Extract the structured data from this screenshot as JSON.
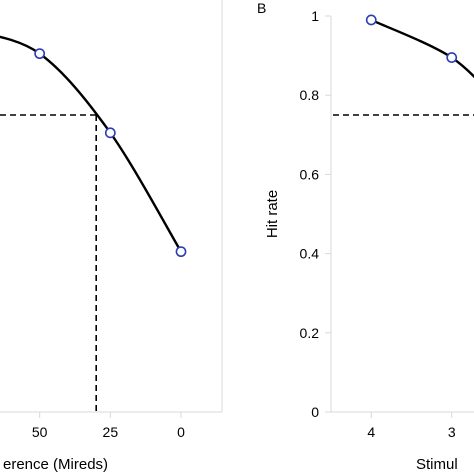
{
  "chart_data": [
    {
      "type": "line",
      "panel_label": "",
      "xlabel": "erence (Mireds)",
      "ylabel": "",
      "x_ticks": [
        50,
        25,
        0
      ],
      "x_tick_labels": [
        "50",
        "25",
        "0"
      ],
      "xlim": [
        75,
        0
      ],
      "ylim": [
        0,
        1
      ],
      "x": [
        50,
        25,
        0
      ],
      "series": [
        {
          "values": [
            0.905,
            0.705,
            0.405
          ],
          "color": "#000000",
          "marker_color": "#2b3fb3"
        }
      ],
      "reference": {
        "threshold_y": 0.75,
        "threshold_x": 30
      },
      "grid": false
    },
    {
      "type": "line",
      "panel_label": "B",
      "xlabel": "Stimul",
      "ylabel": "Hit rate",
      "y_ticks": [
        0,
        0.2,
        0.4,
        0.6,
        0.8,
        1
      ],
      "y_tick_labels": [
        "0",
        "0.2",
        "0.4",
        "0.6",
        "0.8",
        "1"
      ],
      "x_ticks": [
        4,
        3
      ],
      "x_tick_labels": [
        "4",
        "3"
      ],
      "xlim": [
        4.5,
        2.4
      ],
      "ylim": [
        0,
        1
      ],
      "x": [
        4,
        3
      ],
      "series": [
        {
          "values": [
            0.99,
            0.895
          ],
          "color": "#000000",
          "marker_color": "#2b3fb3"
        }
      ],
      "reference": {
        "threshold_y": 0.75
      },
      "grid": false
    }
  ]
}
